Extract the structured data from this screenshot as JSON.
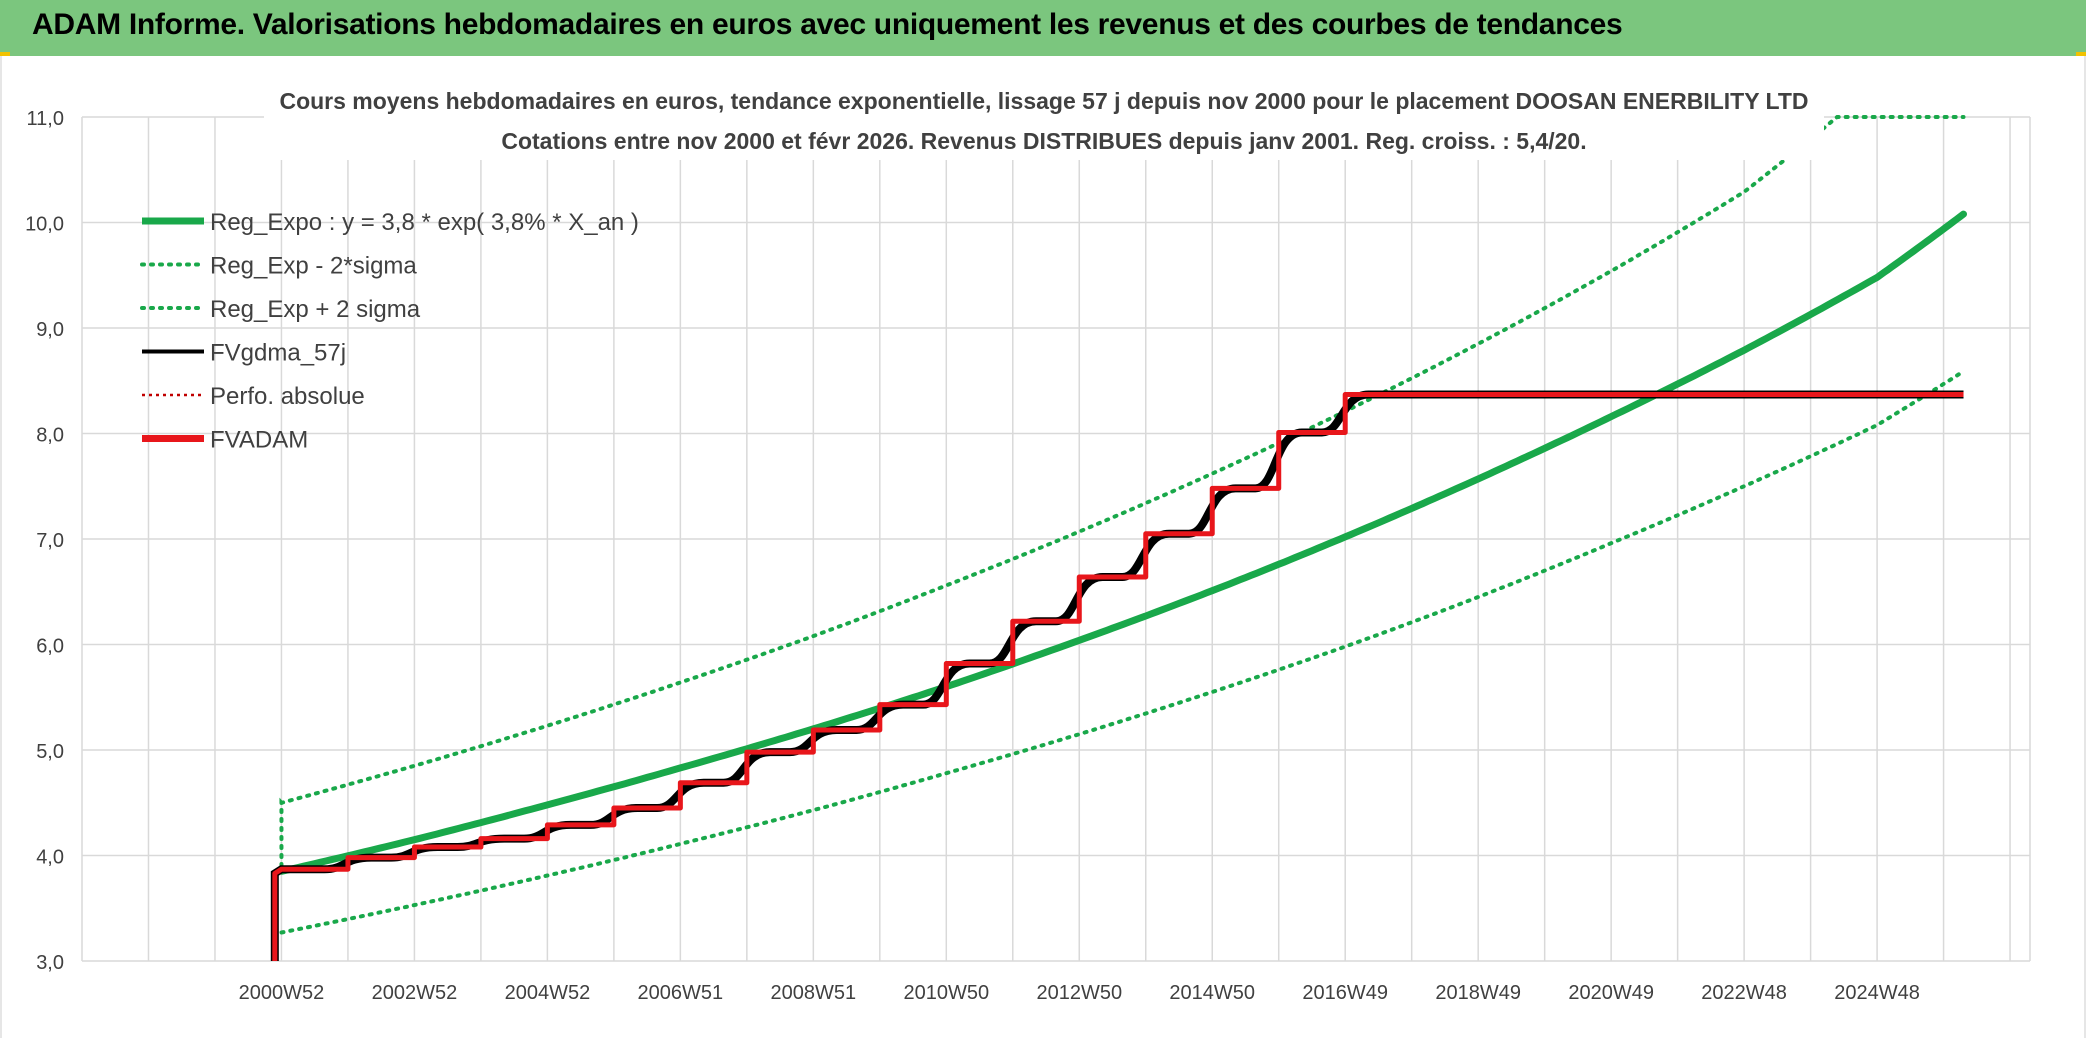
{
  "header": {
    "title": "ADAM Informe. Valorisations hebdomadaires en euros avec uniquement les revenus et des courbes de tendances"
  },
  "colors": {
    "banner": "#7bc67e",
    "reg_expo": "#19a84a",
    "fvgdma": "#000000",
    "fvadam": "#e8161b",
    "perfo": "#c00000",
    "grid": "#d9d9d9"
  },
  "chart_data": {
    "type": "line",
    "title_line1": "Cours moyens hebdomadaires en euros, tendance exponentielle, lissage 57 j depuis nov 2000 pour le placement DOOSAN ENERBILITY LTD",
    "title_line2": "Cotations entre nov 2000 et févr 2026. Revenus DISTRIBUES depuis janv 2001. Reg. croiss. : 5,4/20.",
    "ylim": [
      3,
      11
    ],
    "y_ticks": [
      "3,0",
      "4,0",
      "5,0",
      "6,0",
      "7,0",
      "8,0",
      "9,0",
      "10,0",
      "11,0"
    ],
    "x_range": [
      1998.0,
      2027.3
    ],
    "x_ticks": [
      {
        "x": 2001.0,
        "label": "2000W52"
      },
      {
        "x": 2003.0,
        "label": "2002W52"
      },
      {
        "x": 2005.0,
        "label": "2004W52"
      },
      {
        "x": 2007.0,
        "label": "2006W51"
      },
      {
        "x": 2009.0,
        "label": "2008W51"
      },
      {
        "x": 2011.0,
        "label": "2010W50"
      },
      {
        "x": 2013.0,
        "label": "2012W50"
      },
      {
        "x": 2015.0,
        "label": "2014W50"
      },
      {
        "x": 2017.0,
        "label": "2016W49"
      },
      {
        "x": 2019.0,
        "label": "2018W49"
      },
      {
        "x": 2021.0,
        "label": "2020W49"
      },
      {
        "x": 2023.0,
        "label": "2022W48"
      },
      {
        "x": 2025.0,
        "label": "2024W48"
      }
    ],
    "grid": true,
    "legend_position": "top-left",
    "legend": [
      {
        "label": "Reg_Expo : y = 3,8 * exp( 3,8% *  X_an )",
        "style": "solid-thick",
        "color": "#19a84a"
      },
      {
        "label": "Reg_Exp - 2*sigma",
        "style": "dotted",
        "color": "#19a84a"
      },
      {
        "label": "Reg_Exp + 2 sigma",
        "style": "dotted",
        "color": "#19a84a"
      },
      {
        "label": "FVgdma_57j",
        "style": "solid",
        "color": "#000000"
      },
      {
        "label": "Perfo. absolue",
        "style": "dotted-thin",
        "color": "#c00000"
      },
      {
        "label": "FVADAM",
        "style": "solid-thick",
        "color": "#e8161b"
      }
    ],
    "series": [
      {
        "name": "Reg_Expo : y = 3,8 * exp( 3,8% *  X_an )",
        "x": [
          2001.0,
          2003.0,
          2005.0,
          2007.0,
          2009.0,
          2011.0,
          2013.0,
          2015.0,
          2017.0,
          2019.0,
          2021.0,
          2023.0,
          2025.0,
          2026.3
        ],
        "values": [
          3.85,
          4.15,
          4.48,
          4.83,
          5.2,
          5.6,
          6.04,
          6.51,
          7.02,
          7.57,
          8.16,
          8.79,
          9.48,
          10.08
        ]
      },
      {
        "name": "Reg_Exp - 2*sigma",
        "x": [
          2001.0,
          2003.0,
          2005.0,
          2007.0,
          2009.0,
          2011.0,
          2013.0,
          2015.0,
          2017.0,
          2019.0,
          2021.0,
          2023.0,
          2025.0,
          2026.3
        ],
        "values": [
          3.27,
          3.53,
          3.81,
          4.11,
          4.43,
          4.78,
          5.15,
          5.55,
          5.98,
          6.45,
          6.96,
          7.5,
          8.08,
          8.59
        ]
      },
      {
        "name": "Reg_Exp + 2 sigma",
        "x": [
          2001.0,
          2003.0,
          2005.0,
          2007.0,
          2009.0,
          2011.0,
          2013.0,
          2015.0,
          2017.0,
          2019.0,
          2021.0,
          2023.0,
          2024.4,
          2026.3
        ],
        "values": [
          4.5,
          4.85,
          5.23,
          5.64,
          6.08,
          6.56,
          7.07,
          7.62,
          8.21,
          8.85,
          9.54,
          10.29,
          11.0,
          11.0
        ]
      },
      {
        "name": "FVADAM",
        "start": {
          "x": 2000.9,
          "y_from": 3.0,
          "y_to": 3.83
        },
        "steps": [
          {
            "x": 2001.0,
            "y": 3.87
          },
          {
            "x": 2002.0,
            "y": 3.98
          },
          {
            "x": 2003.0,
            "y": 4.08
          },
          {
            "x": 2004.0,
            "y": 4.16
          },
          {
            "x": 2005.0,
            "y": 4.29
          },
          {
            "x": 2006.0,
            "y": 4.45
          },
          {
            "x": 2007.0,
            "y": 4.69
          },
          {
            "x": 2008.0,
            "y": 4.98
          },
          {
            "x": 2009.0,
            "y": 5.19
          },
          {
            "x": 2010.0,
            "y": 5.43
          },
          {
            "x": 2011.0,
            "y": 5.82
          },
          {
            "x": 2012.0,
            "y": 6.22
          },
          {
            "x": 2013.0,
            "y": 6.64
          },
          {
            "x": 2014.0,
            "y": 7.05
          },
          {
            "x": 2015.0,
            "y": 7.48
          },
          {
            "x": 2016.0,
            "y": 8.01
          },
          {
            "x": 2017.0,
            "y": 8.37
          }
        ],
        "end_x": 2026.3
      }
    ]
  }
}
